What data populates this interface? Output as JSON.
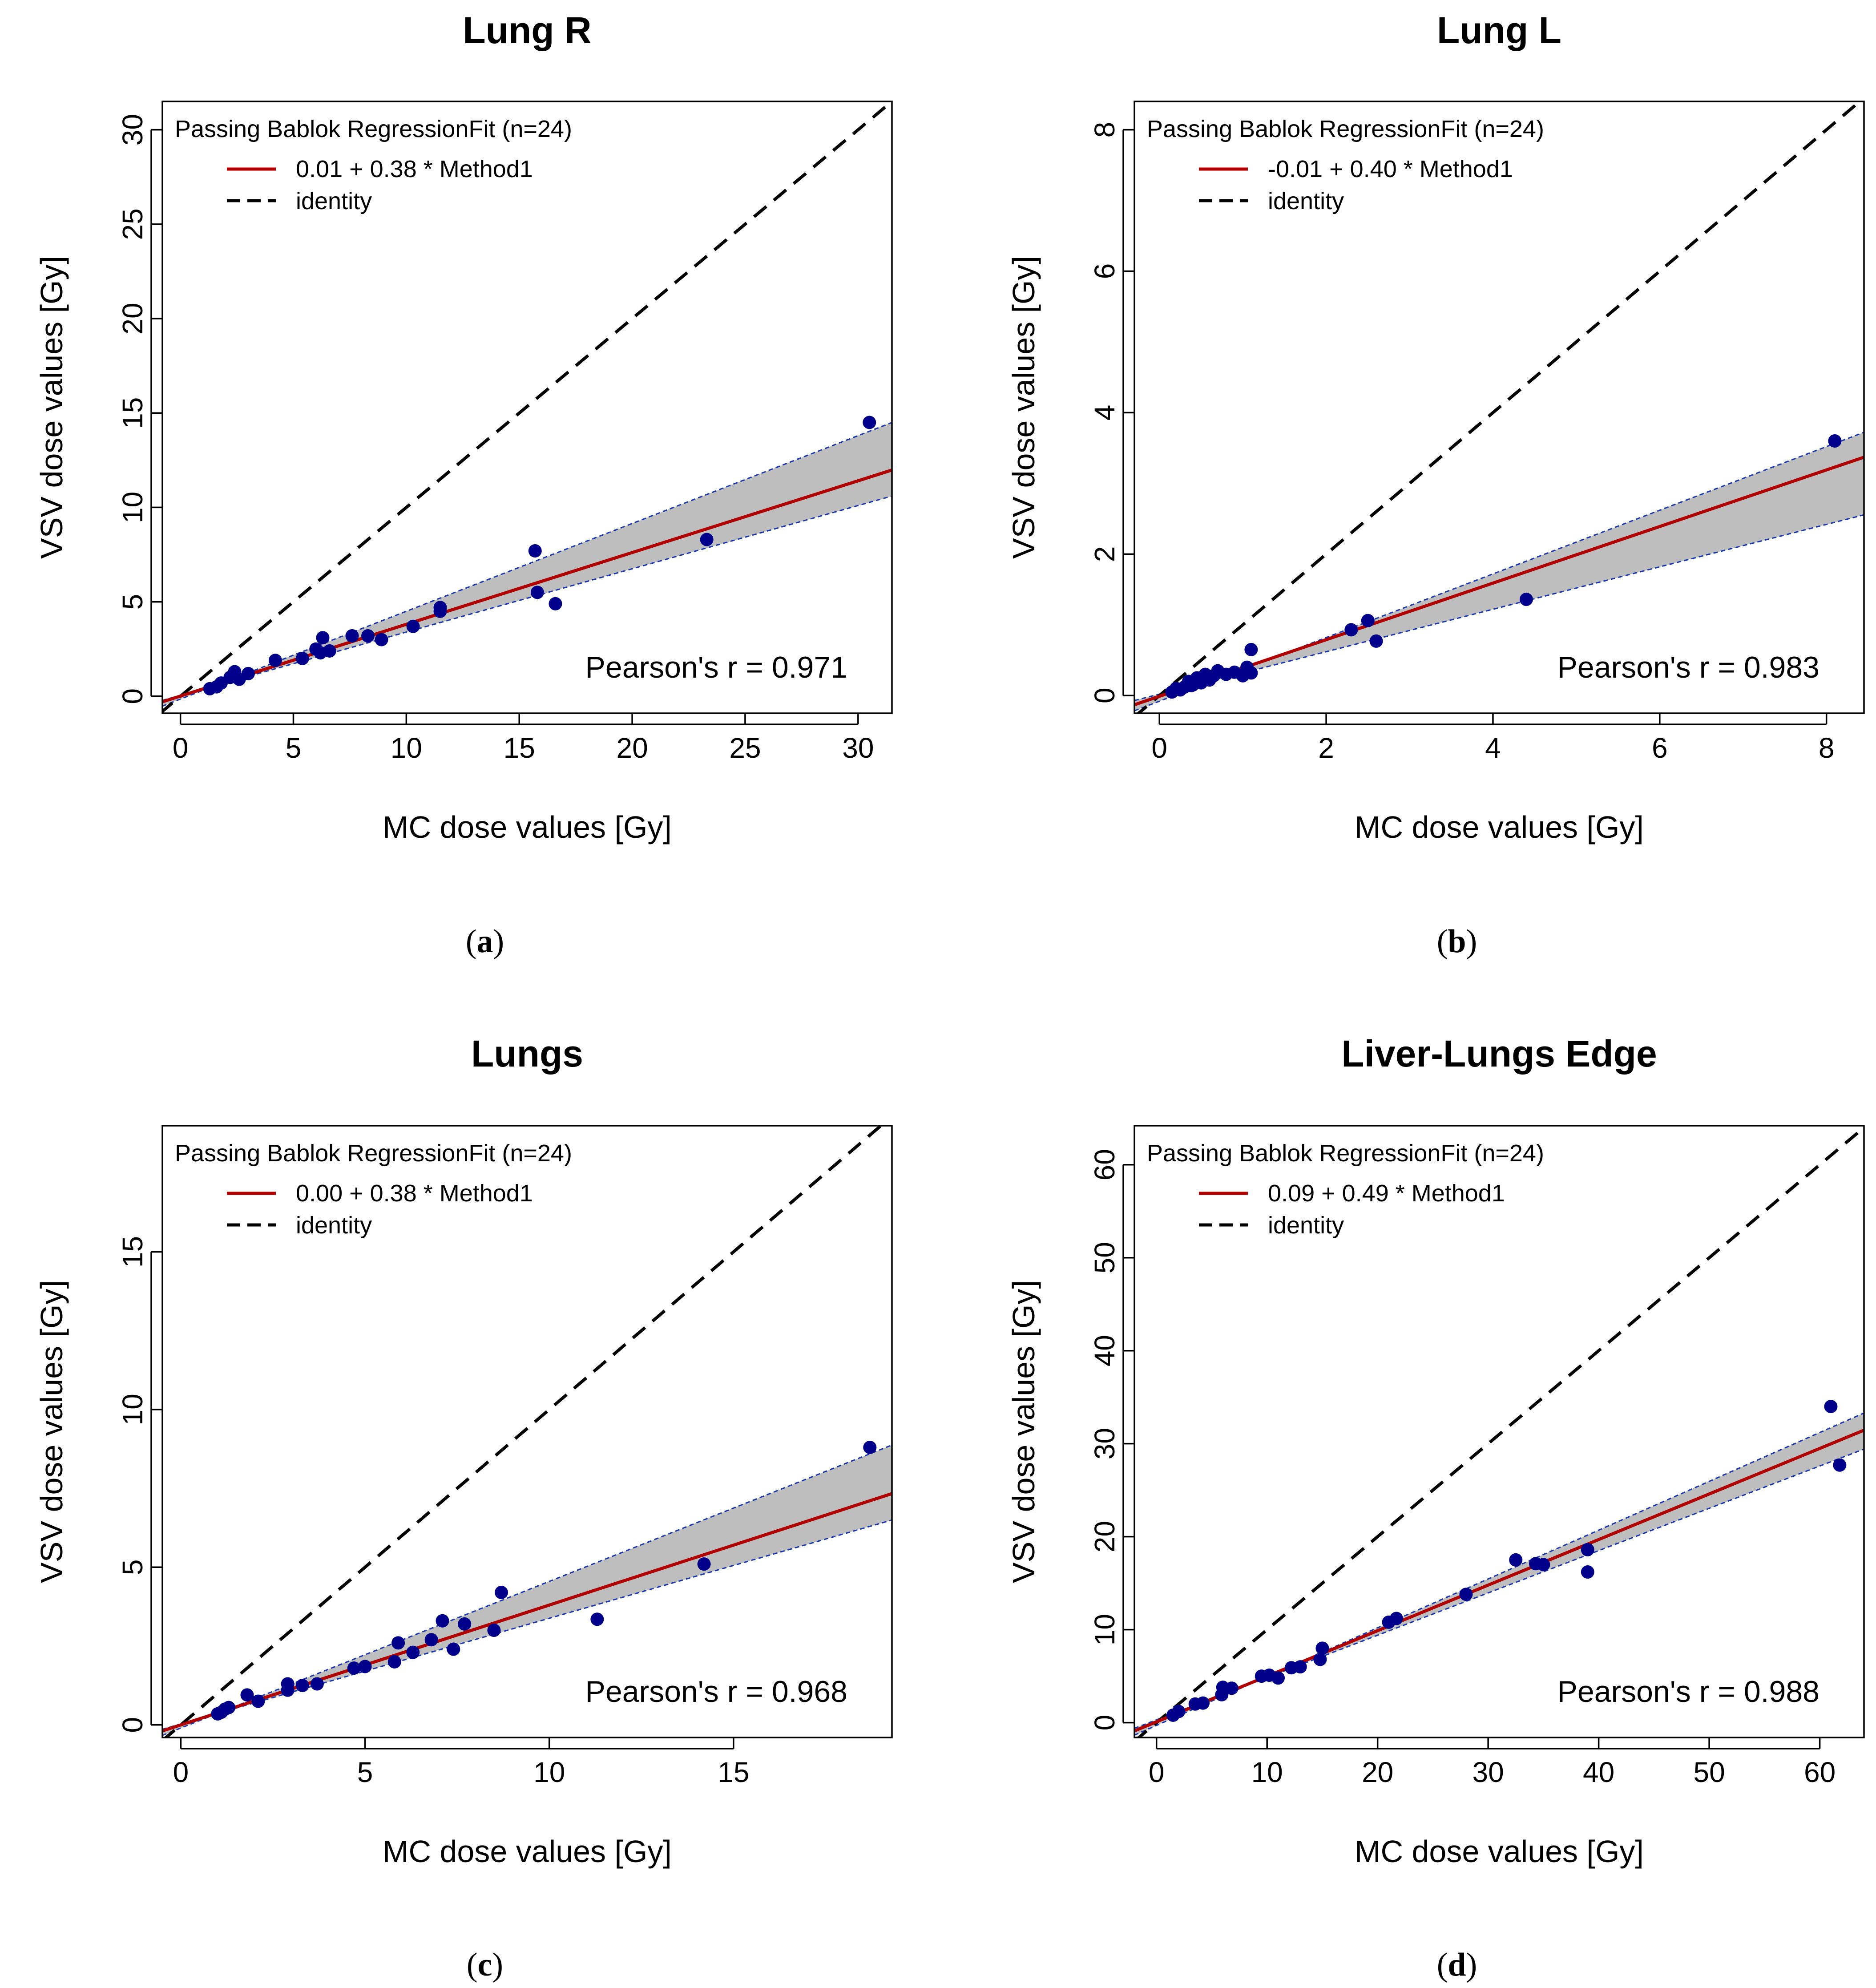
{
  "chart_data": [
    {
      "type": "scatter",
      "title": "Lung R",
      "caption": "a",
      "xlabel": "MC dose values [Gy]",
      "ylabel": "VSV dose values [Gy]",
      "xlim": [
        -0.8,
        31.5
      ],
      "ylim": [
        -0.9,
        31.5
      ],
      "xticks": [
        0,
        5,
        10,
        15,
        20,
        25,
        30
      ],
      "yticks": [
        0,
        5,
        10,
        15,
        20,
        25,
        30
      ],
      "legend_title": "Passing Bablok RegressionFit (n=24)",
      "fit_label": "0.01 + 0.38 * Method1",
      "identity_label": "identity",
      "pearson": "Pearson's r = 0.971",
      "intercept": 0.01,
      "slope": 0.38,
      "ci_lower": {
        "intercept": 0.05,
        "slope": 0.335
      },
      "ci_upper": {
        "intercept": -0.15,
        "slope": 0.465
      },
      "points": [
        [
          1.3,
          0.4
        ],
        [
          1.6,
          0.5
        ],
        [
          2.2,
          1.0
        ],
        [
          2.4,
          1.3
        ],
        [
          2.6,
          0.9
        ],
        [
          4.2,
          1.9
        ],
        [
          5.4,
          2.0
        ],
        [
          6.0,
          2.5
        ],
        [
          6.2,
          2.3
        ],
        [
          6.3,
          3.1
        ],
        [
          6.6,
          2.4
        ],
        [
          7.6,
          3.2
        ],
        [
          8.3,
          3.2
        ],
        [
          8.9,
          3.0
        ],
        [
          10.3,
          3.7
        ],
        [
          11.5,
          4.5
        ],
        [
          11.5,
          4.7
        ],
        [
          15.7,
          7.7
        ],
        [
          15.8,
          5.5
        ],
        [
          16.6,
          4.9
        ],
        [
          23.3,
          8.3
        ],
        [
          30.5,
          14.5
        ],
        [
          1.8,
          0.7
        ],
        [
          3.0,
          1.2
        ]
      ]
    },
    {
      "type": "scatter",
      "title": "Lung L",
      "caption": "b",
      "xlabel": "MC dose values [Gy]",
      "ylabel": "VSV dose values [Gy]",
      "xlim": [
        -0.3,
        8.45
      ],
      "ylim": [
        -0.25,
        8.4
      ],
      "xticks": [
        0,
        2,
        4,
        6,
        8
      ],
      "yticks": [
        0,
        2,
        4,
        6,
        8
      ],
      "legend_title": "Passing Bablok RegressionFit (n=24)",
      "fit_label": "-0.01 + 0.40 * Method1",
      "identity_label": "identity",
      "pearson": "Pearson's r = 0.983",
      "intercept": -0.01,
      "slope": 0.4,
      "ci_lower": {
        "intercept": 0.02,
        "slope": 0.3
      },
      "ci_upper": {
        "intercept": -0.08,
        "slope": 0.45
      },
      "points": [
        [
          0.2,
          0.1
        ],
        [
          0.3,
          0.12
        ],
        [
          0.35,
          0.2
        ],
        [
          0.4,
          0.15
        ],
        [
          0.45,
          0.25
        ],
        [
          0.5,
          0.18
        ],
        [
          0.55,
          0.3
        ],
        [
          0.6,
          0.22
        ],
        [
          0.7,
          0.35
        ],
        [
          1.0,
          0.28
        ],
        [
          1.05,
          0.4
        ],
        [
          1.1,
          0.32
        ],
        [
          1.1,
          0.65
        ],
        [
          2.3,
          0.93
        ],
        [
          2.5,
          1.06
        ],
        [
          2.6,
          0.77
        ],
        [
          4.4,
          1.36
        ],
        [
          8.1,
          3.6
        ],
        [
          0.25,
          0.08
        ],
        [
          0.65,
          0.28
        ],
        [
          0.8,
          0.3
        ],
        [
          0.9,
          0.33
        ],
        [
          0.15,
          0.05
        ],
        [
          0.38,
          0.14
        ]
      ]
    },
    {
      "type": "scatter",
      "title": "Lungs",
      "caption": "c",
      "xlabel": "MC dose values [Gy]",
      "ylabel": "VSV dose values [Gy]",
      "xlim": [
        -0.5,
        19.3
      ],
      "ylim": [
        -0.4,
        19.0
      ],
      "xticks": [
        0,
        5,
        10,
        15
      ],
      "yticks": [
        0,
        5,
        10,
        15
      ],
      "legend_title": "Passing Bablok RegressionFit (n=24)",
      "fit_label": "0.00 + 0.38 * Method1",
      "identity_label": "identity",
      "pearson": "Pearson's r = 0.968",
      "intercept": 0.0,
      "slope": 0.38,
      "ci_lower": {
        "intercept": 0.03,
        "slope": 0.335
      },
      "ci_upper": {
        "intercept": -0.1,
        "slope": 0.465
      },
      "points": [
        [
          1.0,
          0.35
        ],
        [
          1.2,
          0.5
        ],
        [
          1.3,
          0.55
        ],
        [
          1.8,
          0.95
        ],
        [
          2.1,
          0.75
        ],
        [
          2.9,
          1.3
        ],
        [
          2.9,
          1.1
        ],
        [
          3.3,
          1.25
        ],
        [
          3.7,
          1.3
        ],
        [
          4.7,
          1.8
        ],
        [
          5.0,
          1.85
        ],
        [
          5.8,
          2.0
        ],
        [
          5.9,
          2.6
        ],
        [
          6.3,
          2.3
        ],
        [
          6.8,
          2.7
        ],
        [
          7.1,
          3.3
        ],
        [
          7.4,
          2.4
        ],
        [
          7.7,
          3.2
        ],
        [
          8.5,
          3.0
        ],
        [
          8.7,
          4.2
        ],
        [
          11.3,
          3.35
        ],
        [
          14.2,
          5.1
        ],
        [
          18.7,
          8.8
        ],
        [
          1.1,
          0.4
        ]
      ]
    },
    {
      "type": "scatter",
      "title": "Liver-Lungs Edge",
      "caption": "d",
      "xlabel": "MC dose values [Gy]",
      "ylabel": "VSV dose values [Gy]",
      "xlim": [
        -2.0,
        64.0
      ],
      "ylim": [
        -1.6,
        64.2
      ],
      "xticks": [
        0,
        10,
        20,
        30,
        40,
        50,
        60
      ],
      "yticks": [
        0,
        10,
        20,
        30,
        40,
        50,
        60
      ],
      "legend_title": "Passing Bablok RegressionFit (n=24)",
      "fit_label": "0.09 + 0.49 * Method1",
      "identity_label": "identity",
      "pearson": "Pearson's r = 0.988",
      "intercept": 0.09,
      "slope": 0.49,
      "ci_lower": {
        "intercept": 0.3,
        "slope": 0.455
      },
      "ci_upper": {
        "intercept": -0.3,
        "slope": 0.525
      },
      "points": [
        [
          1.5,
          0.8
        ],
        [
          3.5,
          2.0
        ],
        [
          4.2,
          2.1
        ],
        [
          5.9,
          3.0
        ],
        [
          6.0,
          3.8
        ],
        [
          6.8,
          3.7
        ],
        [
          9.5,
          5.0
        ],
        [
          10.2,
          5.1
        ],
        [
          11.0,
          4.8
        ],
        [
          12.2,
          5.9
        ],
        [
          13.0,
          6.0
        ],
        [
          14.8,
          6.8
        ],
        [
          15.0,
          8.0
        ],
        [
          21.0,
          10.8
        ],
        [
          21.7,
          11.2
        ],
        [
          28.0,
          13.8
        ],
        [
          32.5,
          17.5
        ],
        [
          34.3,
          17.1
        ],
        [
          35.0,
          17.0
        ],
        [
          39.0,
          18.6
        ],
        [
          39.0,
          16.2
        ],
        [
          61.0,
          34.0
        ],
        [
          61.8,
          27.7
        ],
        [
          2.0,
          1.2
        ]
      ]
    }
  ],
  "colors": {
    "fit": "#b00000",
    "identity": "#000000",
    "band": "#bebebe",
    "band_edge": "#1a37b0",
    "point": "#00008b"
  }
}
